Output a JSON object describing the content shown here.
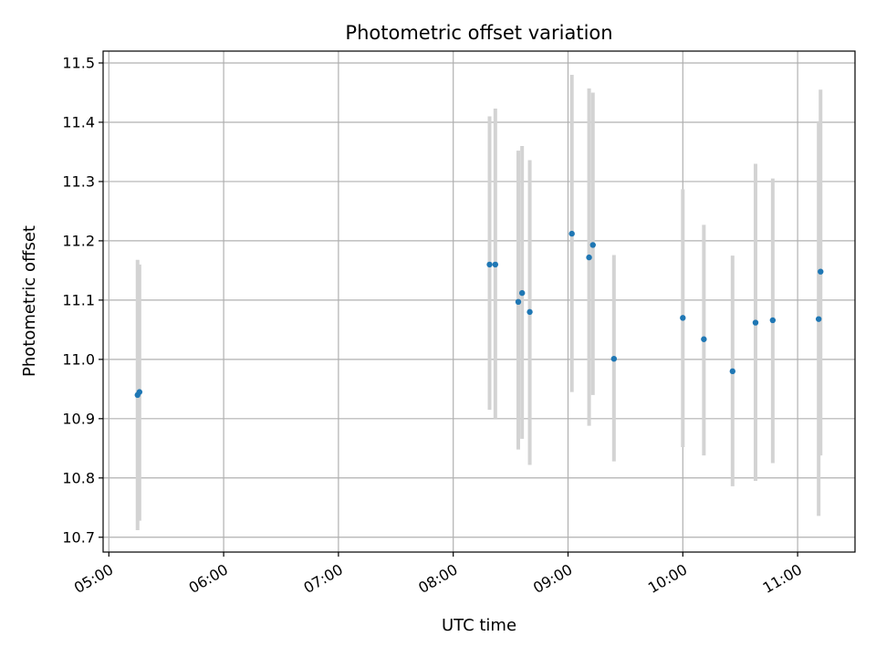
{
  "chart_data": {
    "type": "scatter",
    "title": "Photometric offset variation",
    "xlabel": "UTC time",
    "ylabel": "Photometric offset",
    "x_unit": "UTC clock time (HH:MM)",
    "xlim": [
      "04:57",
      "11:30"
    ],
    "ylim": [
      10.675,
      11.52
    ],
    "x_ticks": [
      "05:00",
      "06:00",
      "07:00",
      "08:00",
      "09:00",
      "10:00",
      "11:00"
    ],
    "y_ticks": [
      10.7,
      10.8,
      10.9,
      11.0,
      11.1,
      11.2,
      11.3,
      11.4,
      11.5
    ],
    "grid": true,
    "legend": "none",
    "colors": {
      "point": "#1f77b4",
      "errorbar": "#d3d3d3",
      "grid": "#b0b0b0"
    },
    "series": [
      {
        "points": [
          {
            "x": "05:15",
            "y": 10.94,
            "ylow": 10.712,
            "yhigh": 11.168
          },
          {
            "x": "05:16",
            "y": 10.945,
            "ylow": 10.728,
            "yhigh": 11.16
          },
          {
            "x": "08:19",
            "y": 11.16,
            "ylow": 10.915,
            "yhigh": 11.41
          },
          {
            "x": "08:22",
            "y": 11.16,
            "ylow": 10.9,
            "yhigh": 11.423
          },
          {
            "x": "08:34",
            "y": 11.097,
            "ylow": 10.848,
            "yhigh": 11.352
          },
          {
            "x": "08:36",
            "y": 11.112,
            "ylow": 10.866,
            "yhigh": 11.36
          },
          {
            "x": "08:40",
            "y": 11.08,
            "ylow": 10.822,
            "yhigh": 11.336
          },
          {
            "x": "09:02",
            "y": 11.212,
            "ylow": 10.945,
            "yhigh": 11.48
          },
          {
            "x": "09:11",
            "y": 11.172,
            "ylow": 10.888,
            "yhigh": 11.457
          },
          {
            "x": "09:13",
            "y": 11.193,
            "ylow": 10.94,
            "yhigh": 11.45
          },
          {
            "x": "09:24",
            "y": 11.001,
            "ylow": 10.828,
            "yhigh": 11.176
          },
          {
            "x": "10:00",
            "y": 11.07,
            "ylow": 10.852,
            "yhigh": 11.287
          },
          {
            "x": "10:11",
            "y": 11.034,
            "ylow": 10.838,
            "yhigh": 11.227
          },
          {
            "x": "10:26",
            "y": 10.98,
            "ylow": 10.786,
            "yhigh": 11.175
          },
          {
            "x": "10:38",
            "y": 11.062,
            "ylow": 10.795,
            "yhigh": 11.33
          },
          {
            "x": "10:47",
            "y": 11.066,
            "ylow": 10.825,
            "yhigh": 11.305
          },
          {
            "x": "11:11",
            "y": 11.068,
            "ylow": 10.736,
            "yhigh": 11.4
          },
          {
            "x": "11:12",
            "y": 11.148,
            "ylow": 10.838,
            "yhigh": 11.455
          }
        ]
      }
    ]
  }
}
